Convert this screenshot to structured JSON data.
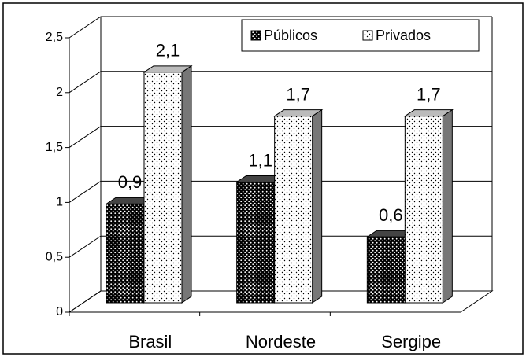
{
  "chart_data": {
    "type": "bar3d",
    "categories": [
      "Brasil",
      "Nordeste",
      "Sergipe"
    ],
    "series": [
      {
        "name": "Públicos",
        "color": "#000000",
        "values": [
          0.9,
          1.1,
          0.6
        ],
        "value_labels": [
          "0,9",
          "1,1",
          "0,6"
        ]
      },
      {
        "name": "Privados",
        "color": "#ffffff",
        "values": [
          2.1,
          1.7,
          1.7
        ],
        "value_labels": [
          "2,1",
          "1,7",
          "1,7"
        ]
      }
    ],
    "ylim": [
      0,
      2.5
    ],
    "yticks": [
      0,
      {
        "value": 0.5,
        "label": "0,5"
      },
      1,
      {
        "value": 1.5,
        "label": "1,5"
      },
      2,
      {
        "value": 2.5,
        "label": "2,5"
      }
    ],
    "grid": true,
    "legend": "top-right"
  }
}
